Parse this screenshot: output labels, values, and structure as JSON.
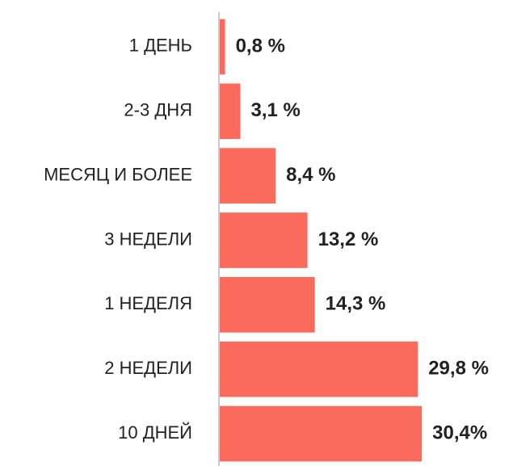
{
  "chart_data": {
    "type": "barh",
    "categories": [
      "1 ДЕНЬ",
      "2-3 ДНЯ",
      "МЕСЯЦ И БОЛЕЕ",
      "3 НЕДЕЛИ",
      "1 НЕДЕЛЯ",
      "2 НЕДЕЛИ",
      "10 ДНЕЙ"
    ],
    "values": [
      0.8,
      3.1,
      8.4,
      13.2,
      14.3,
      29.8,
      30.4
    ],
    "value_labels": [
      "0,8 %",
      "3,1 %",
      "8,4 %",
      "13,2 %",
      "14,3 %",
      "29,8 %",
      "30,4%"
    ],
    "color": "#fa6b5d",
    "xlim": [
      0,
      35
    ]
  }
}
